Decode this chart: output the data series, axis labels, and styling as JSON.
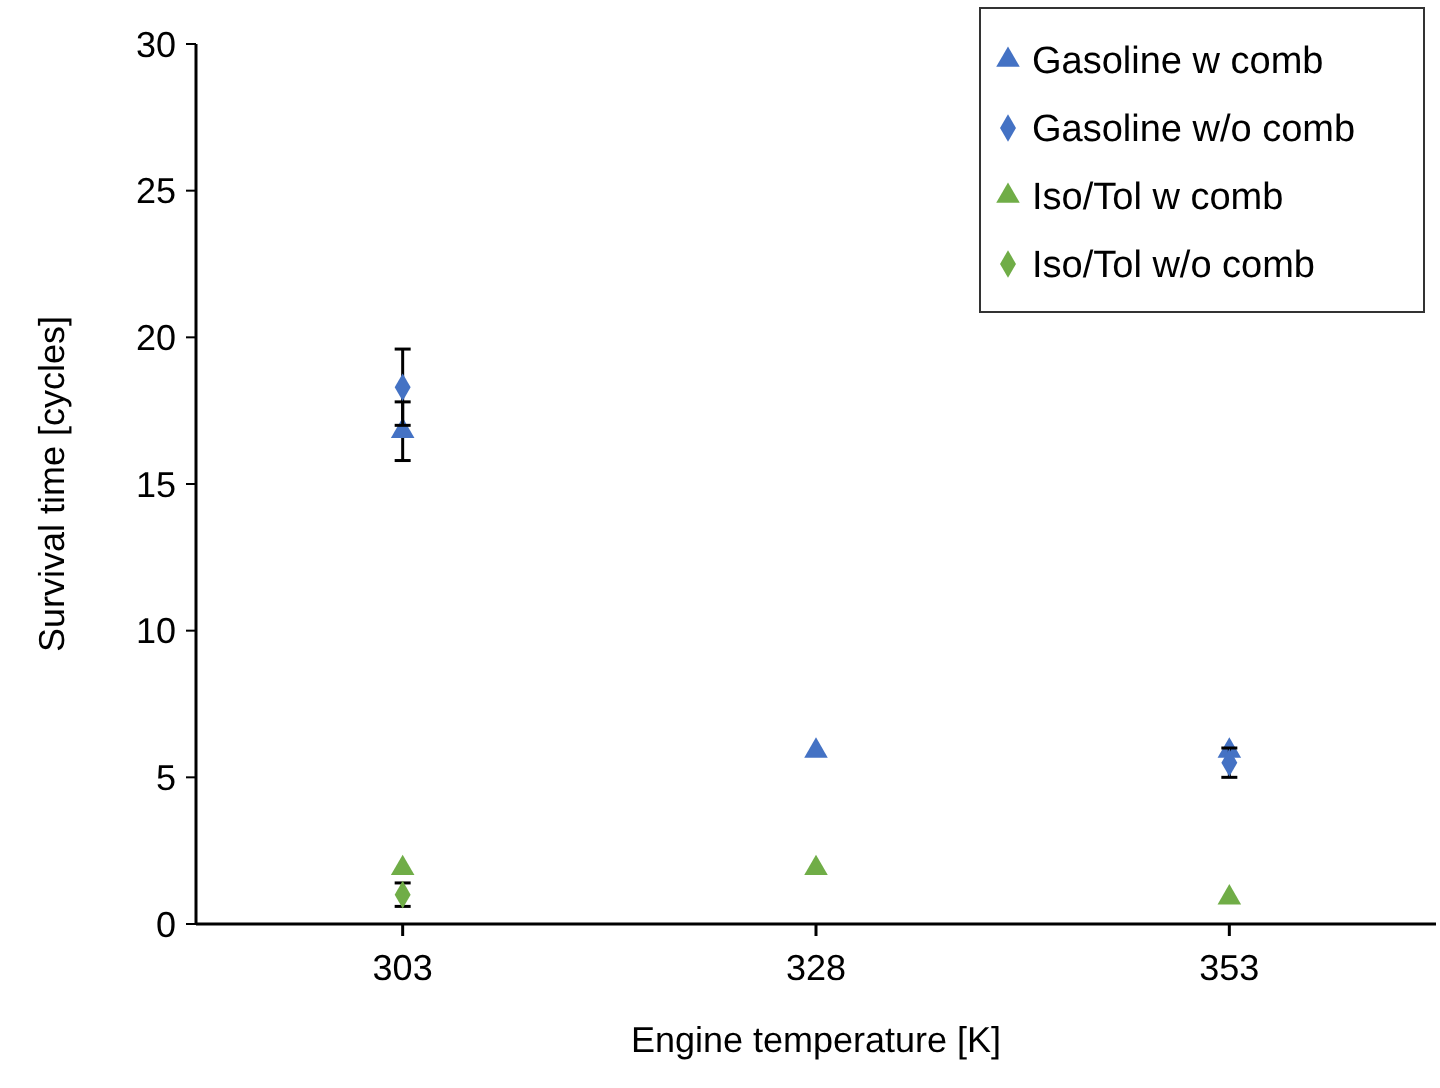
{
  "chart_data": {
    "type": "scatter",
    "xlabel": "Engine temperature [K]",
    "ylabel": "Survival time [cycles]",
    "categories": [
      "303",
      "328",
      "353"
    ],
    "ylim": [
      0,
      30
    ],
    "yticks": [
      0,
      5,
      10,
      15,
      20,
      25,
      30
    ],
    "grid": false,
    "legend": "top right",
    "series": [
      {
        "name": "Gasoline w comb",
        "color": "#4472c4",
        "marker": "triangle",
        "values": [
          16.8,
          5.9,
          5.9
        ],
        "errors": [
          1,
          null,
          null
        ]
      },
      {
        "name": "Gasoline w/o comb",
        "color": "#4472c4",
        "marker": "diamond",
        "values": [
          18.3,
          null,
          5.5
        ],
        "errors": [
          1.3,
          null,
          0.5
        ]
      },
      {
        "name": "Iso/Tol w comb",
        "color": "#70ad47",
        "marker": "triangle",
        "values": [
          1.9,
          1.9,
          0.9
        ],
        "errors": [
          null,
          null,
          null
        ]
      },
      {
        "name": "Iso/Tol w/o comb",
        "color": "#70ad47",
        "marker": "diamond",
        "values": [
          1.0,
          null,
          null
        ],
        "errors": [
          0.4,
          null,
          null
        ]
      }
    ]
  }
}
